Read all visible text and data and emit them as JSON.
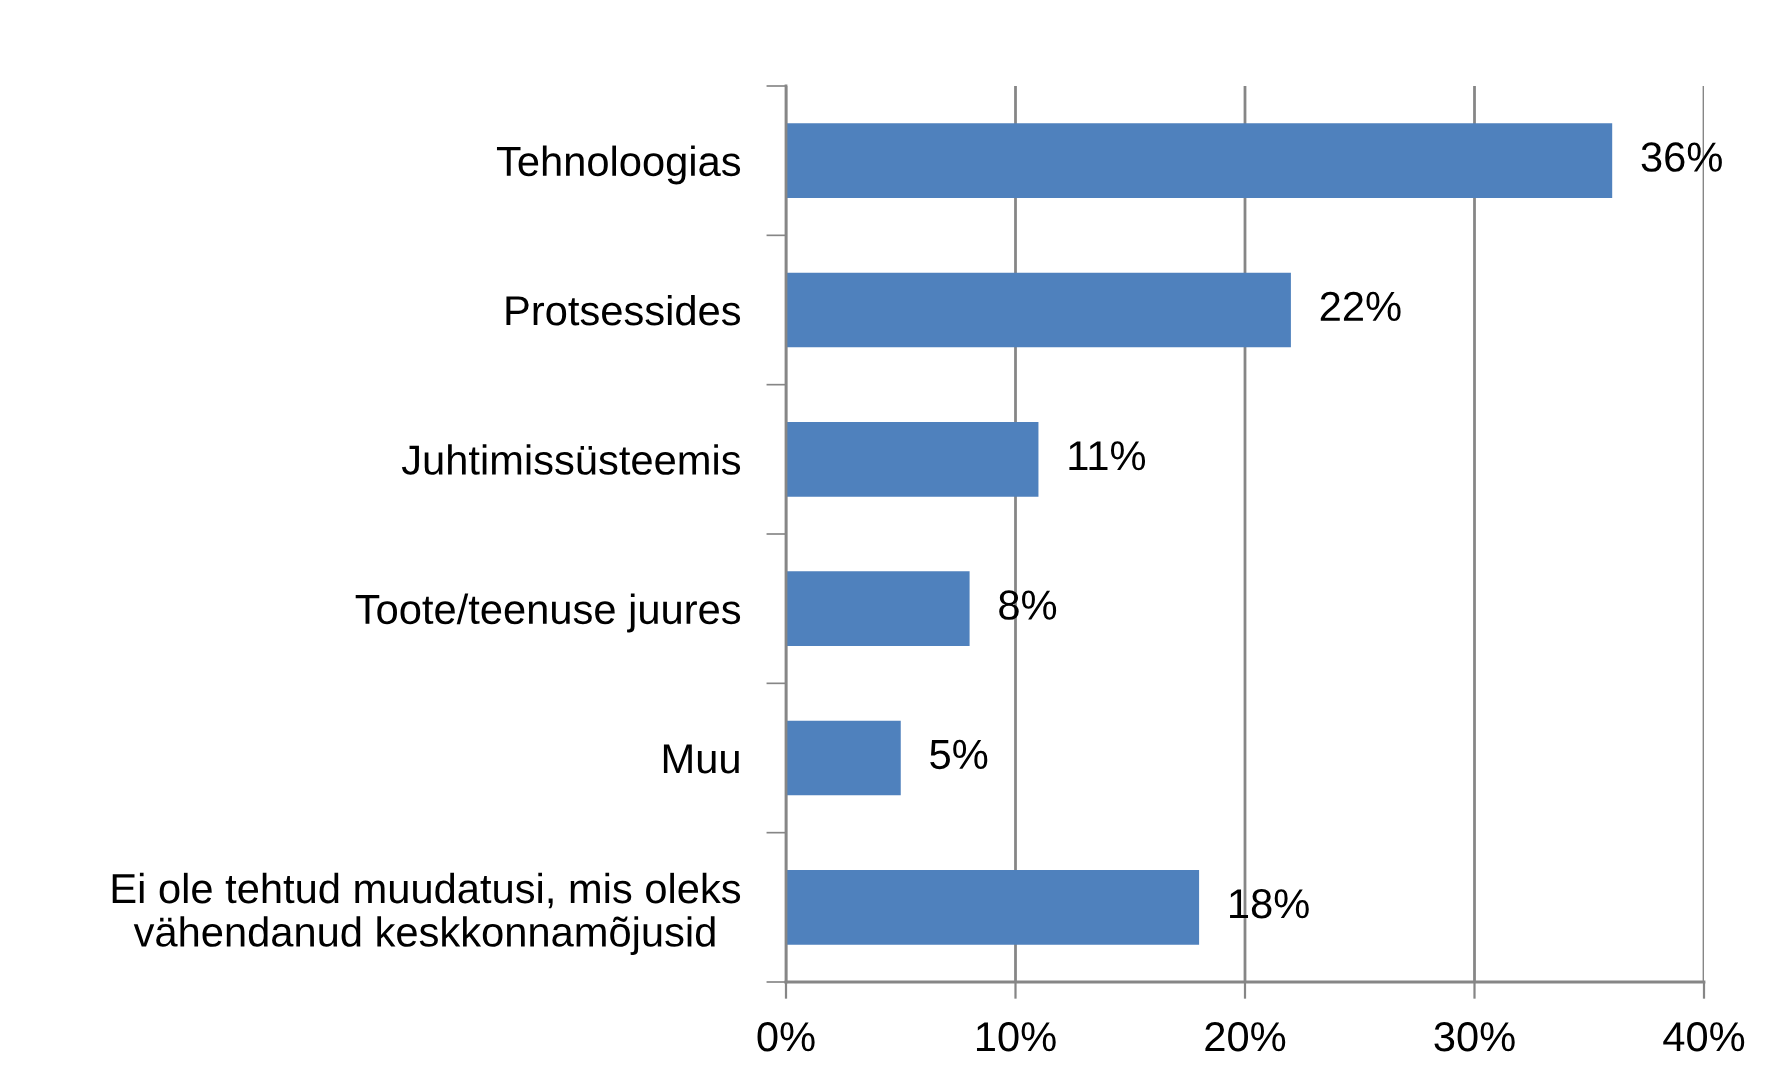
{
  "chart_data": {
    "type": "bar",
    "orientation": "horizontal",
    "categories": [
      "Tehnoloogias",
      "Protsessides",
      "Juhtimissüsteemis",
      "Toote/teenuse juures",
      "Muu",
      "Ei ole tehtud muudatusi, mis oleks\nvähendanud keskkonnamõjusid"
    ],
    "values": [
      36,
      22,
      11,
      8,
      5,
      18
    ],
    "value_labels": [
      "36%",
      "22%",
      "11%",
      "8%",
      "5%",
      "18%"
    ],
    "color": "#4f81bd",
    "xlim": [
      0,
      40
    ],
    "xticks": [
      {
        "value": 0,
        "label": "0%"
      },
      {
        "value": 10,
        "label": "10%"
      },
      {
        "value": 20,
        "label": "20%"
      },
      {
        "value": 30,
        "label": "30%"
      },
      {
        "value": 40,
        "label": "40%"
      }
    ],
    "grid": "x"
  }
}
